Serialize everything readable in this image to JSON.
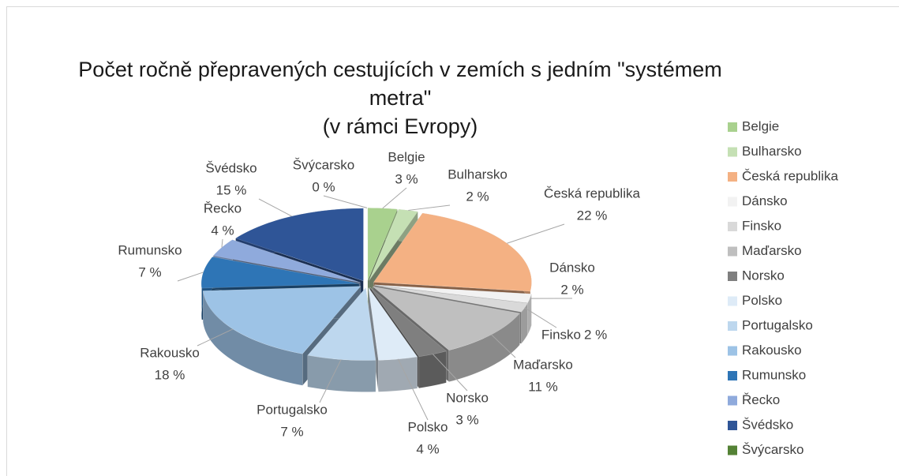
{
  "chart_data": {
    "type": "pie3d",
    "title": "Počet ročně přepravených cestujících v zemích s jedním \"systémem metra\"",
    "subtitle": "(v rámci Evropy)",
    "categories": [
      "Belgie",
      "Bulharsko",
      "Česká republika",
      "Dánsko",
      "Finsko",
      "Maďarsko",
      "Norsko",
      "Polsko",
      "Portugalsko",
      "Rakousko",
      "Rumunsko",
      "Řecko",
      "Švédsko",
      "Švýcarsko"
    ],
    "values": [
      3,
      2,
      22,
      2,
      2,
      11,
      3,
      4,
      7,
      18,
      7,
      4,
      15,
      0
    ],
    "value_labels": [
      "3 %",
      "2 %",
      "22 %",
      "2 %",
      "2 %",
      "11 %",
      "3 %",
      "4 %",
      "7 %",
      "18 %",
      "7 %",
      "4 %",
      "15 %",
      "0 %"
    ],
    "colors": [
      "#a9d18e",
      "#c5e0b4",
      "#f4b183",
      "#f2f2f2",
      "#d9d9d9",
      "#bfbfbf",
      "#7f7f7f",
      "#deebf7",
      "#bdd7ee",
      "#9dc3e6",
      "#2e75b6",
      "#8faadc",
      "#2f5597",
      "#548235"
    ],
    "legend": "right"
  }
}
